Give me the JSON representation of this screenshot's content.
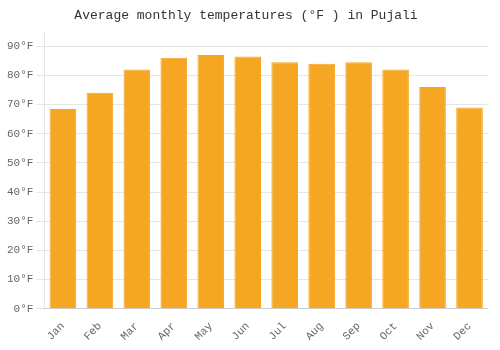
{
  "chart_data": {
    "type": "bar",
    "title": "Average monthly temperatures (°F ) in Pujali",
    "categories": [
      "Jan",
      "Feb",
      "Mar",
      "Apr",
      "May",
      "Jun",
      "Jul",
      "Aug",
      "Sep",
      "Oct",
      "Nov",
      "Dec"
    ],
    "values": [
      68.5,
      74.0,
      82.0,
      86.0,
      87.0,
      86.5,
      84.5,
      84.0,
      84.5,
      82.0,
      76.0,
      69.0
    ],
    "color": "#F5A623",
    "ylim": [
      0,
      95
    ],
    "yticks": [
      {
        "value": 0,
        "label": "0°F"
      },
      {
        "value": 10,
        "label": "10°F"
      },
      {
        "value": 20,
        "label": "20°F"
      },
      {
        "value": 30,
        "label": "30°F"
      },
      {
        "value": 40,
        "label": "40°F"
      },
      {
        "value": 50,
        "label": "50°F"
      },
      {
        "value": 60,
        "label": "60°F"
      },
      {
        "value": 70,
        "label": "70°F"
      },
      {
        "value": 80,
        "label": "80°F"
      },
      {
        "value": 90,
        "label": "90°F"
      }
    ],
    "grid": true
  }
}
